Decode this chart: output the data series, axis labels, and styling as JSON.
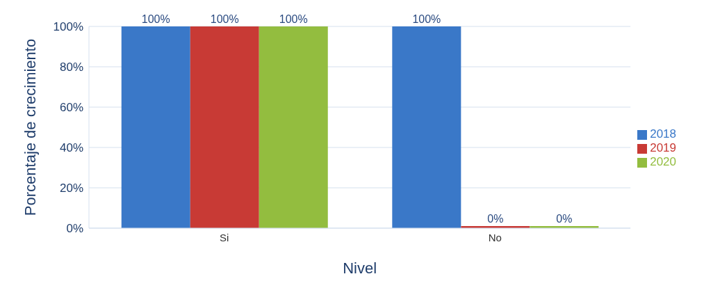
{
  "chart_data": {
    "type": "bar",
    "xlabel": "Nivel",
    "ylabel": "Porcentaje de crecimiento",
    "categories": [
      "Si",
      "No"
    ],
    "series": [
      {
        "name": "2018",
        "color": "#3a78c8",
        "values": [
          100,
          100
        ],
        "value_labels": [
          "100%",
          "100%"
        ]
      },
      {
        "name": "2019",
        "color": "#c83a35",
        "values": [
          100,
          0
        ],
        "value_labels": [
          "100%",
          "0%"
        ]
      },
      {
        "name": "2020",
        "color": "#93bd3f",
        "values": [
          100,
          0
        ],
        "value_labels": [
          "100%",
          "0%"
        ]
      }
    ],
    "ylim": [
      0,
      100
    ],
    "yticks": [
      {
        "value": 0,
        "label": "0%"
      },
      {
        "value": 20,
        "label": "20%"
      },
      {
        "value": 40,
        "label": "40%"
      },
      {
        "value": 60,
        "label": "60%"
      },
      {
        "value": 80,
        "label": "80%"
      },
      {
        "value": 100,
        "label": "100%"
      }
    ],
    "grid": "y",
    "legend": "right"
  }
}
